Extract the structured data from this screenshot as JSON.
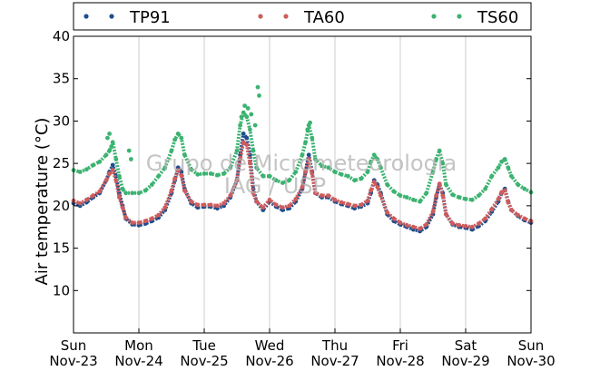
{
  "chart_data": {
    "type": "scatter",
    "ylabel": "Air temperature (°C)",
    "xlabel": "",
    "ylim": [
      5,
      40
    ],
    "yticks": [
      10,
      15,
      20,
      25,
      30,
      35,
      40
    ],
    "xlim": [
      0,
      7
    ],
    "grid": "vertical only",
    "legend_placement": "top, above plot",
    "x_unit": "days from Sun Nov-23 00:00",
    "xticks": [
      {
        "x": 0,
        "day": "Sun",
        "date": "Nov-23"
      },
      {
        "x": 1,
        "day": "Mon",
        "date": "Nov-24"
      },
      {
        "x": 2,
        "day": "Tue",
        "date": "Nov-25"
      },
      {
        "x": 3,
        "day": "Wed",
        "date": "Nov-26"
      },
      {
        "x": 4,
        "day": "Thu",
        "date": "Nov-27"
      },
      {
        "x": 5,
        "day": "Fri",
        "date": "Nov-28"
      },
      {
        "x": 6,
        "day": "Sat",
        "date": "Nov-29"
      },
      {
        "x": 7,
        "day": "Sun",
        "date": "Nov-30"
      }
    ],
    "watermark": [
      "Grupo de Micrometeorologia",
      "IAG / USP"
    ],
    "series": [
      {
        "name": "TP91",
        "color": "#1f4e8c",
        "x": [
          0.0,
          0.1,
          0.2,
          0.3,
          0.4,
          0.5,
          0.55,
          0.6,
          0.65,
          0.7,
          0.75,
          0.8,
          0.9,
          1.0,
          1.1,
          1.2,
          1.3,
          1.4,
          1.5,
          1.55,
          1.6,
          1.65,
          1.7,
          1.8,
          1.9,
          2.0,
          2.1,
          2.2,
          2.3,
          2.4,
          2.5,
          2.55,
          2.6,
          2.65,
          2.7,
          2.75,
          2.8,
          2.9,
          3.0,
          3.1,
          3.2,
          3.3,
          3.4,
          3.5,
          3.55,
          3.6,
          3.65,
          3.7,
          3.8,
          3.9,
          4.0,
          4.1,
          4.2,
          4.3,
          4.4,
          4.5,
          4.55,
          4.6,
          4.65,
          4.7,
          4.8,
          4.9,
          5.0,
          5.1,
          5.2,
          5.3,
          5.4,
          5.5,
          5.55,
          5.6,
          5.65,
          5.7,
          5.8,
          5.9,
          6.0,
          6.1,
          6.2,
          6.3,
          6.4,
          6.5,
          6.55,
          6.6,
          6.65,
          6.7,
          6.8,
          6.9,
          7.0
        ],
        "y": [
          20.3,
          20.0,
          20.4,
          21.0,
          21.5,
          23.0,
          24.0,
          24.8,
          23.5,
          21.5,
          20.0,
          18.5,
          17.8,
          17.7,
          17.9,
          18.2,
          18.6,
          19.5,
          21.5,
          23.0,
          24.5,
          24.0,
          22.0,
          20.3,
          19.8,
          19.9,
          19.9,
          19.7,
          20.0,
          21.0,
          23.0,
          26.0,
          28.5,
          28.0,
          26.0,
          22.0,
          20.5,
          19.5,
          20.5,
          19.9,
          19.5,
          19.7,
          20.5,
          22.0,
          24.0,
          26.0,
          24.0,
          21.5,
          21.0,
          21.0,
          20.5,
          20.2,
          20.0,
          19.7,
          19.9,
          20.3,
          21.5,
          23.0,
          22.5,
          21.5,
          19.0,
          18.2,
          17.8,
          17.5,
          17.2,
          17.0,
          17.5,
          19.0,
          21.0,
          22.5,
          21.5,
          19.0,
          17.8,
          17.5,
          17.4,
          17.2,
          17.6,
          18.2,
          19.3,
          20.5,
          21.5,
          22.0,
          20.5,
          19.5,
          18.8,
          18.3,
          18.0
        ]
      },
      {
        "name": "TA60",
        "color": "#cd5c5c",
        "x": [
          0.0,
          0.1,
          0.2,
          0.3,
          0.4,
          0.5,
          0.55,
          0.6,
          0.65,
          0.7,
          0.75,
          0.8,
          0.9,
          1.0,
          1.1,
          1.2,
          1.3,
          1.4,
          1.5,
          1.55,
          1.6,
          1.65,
          1.7,
          1.8,
          1.9,
          2.0,
          2.1,
          2.2,
          2.3,
          2.4,
          2.5,
          2.55,
          2.6,
          2.65,
          2.7,
          2.75,
          2.8,
          2.9,
          3.0,
          3.1,
          3.2,
          3.3,
          3.4,
          3.5,
          3.55,
          3.6,
          3.65,
          3.7,
          3.8,
          3.9,
          4.0,
          4.1,
          4.2,
          4.3,
          4.4,
          4.5,
          4.55,
          4.6,
          4.65,
          4.7,
          4.8,
          4.9,
          5.0,
          5.1,
          5.2,
          5.3,
          5.4,
          5.5,
          5.55,
          5.6,
          5.65,
          5.7,
          5.8,
          5.9,
          6.0,
          6.1,
          6.2,
          6.3,
          6.4,
          6.5,
          6.55,
          6.6,
          6.65,
          6.7,
          6.8,
          6.9,
          7.0
        ],
        "y": [
          20.6,
          20.3,
          20.7,
          21.2,
          21.7,
          23.0,
          23.8,
          24.2,
          23.0,
          21.0,
          19.8,
          18.6,
          18.0,
          18.0,
          18.2,
          18.5,
          18.9,
          19.8,
          21.8,
          23.2,
          24.2,
          23.6,
          21.8,
          20.5,
          20.1,
          20.1,
          20.1,
          20.0,
          20.3,
          21.2,
          23.0,
          25.5,
          27.5,
          27.2,
          25.0,
          21.5,
          20.5,
          19.8,
          20.7,
          20.1,
          19.8,
          20.0,
          20.8,
          22.2,
          24.0,
          25.5,
          23.8,
          21.5,
          21.2,
          21.2,
          20.7,
          20.4,
          20.2,
          20.0,
          20.1,
          20.6,
          21.8,
          22.8,
          22.2,
          21.2,
          19.2,
          18.5,
          18.0,
          17.7,
          17.5,
          17.3,
          17.8,
          19.3,
          21.2,
          22.6,
          21.2,
          19.0,
          17.9,
          17.7,
          17.6,
          17.5,
          17.9,
          18.5,
          19.6,
          20.8,
          21.6,
          21.8,
          20.4,
          19.5,
          18.9,
          18.5,
          18.2
        ]
      },
      {
        "name": "TS60",
        "color": "#3cb371",
        "x": [
          0.0,
          0.1,
          0.2,
          0.3,
          0.4,
          0.5,
          0.55,
          0.6,
          0.65,
          0.7,
          0.75,
          0.8,
          0.9,
          1.0,
          1.1,
          1.2,
          1.3,
          1.4,
          1.5,
          1.55,
          1.6,
          1.65,
          1.7,
          1.8,
          1.9,
          2.0,
          2.1,
          2.2,
          2.3,
          2.4,
          2.5,
          2.55,
          2.6,
          2.65,
          2.7,
          2.75,
          2.8,
          2.9,
          3.0,
          3.1,
          3.2,
          3.3,
          3.4,
          3.5,
          3.55,
          3.6,
          3.65,
          3.7,
          3.8,
          3.9,
          4.0,
          4.1,
          4.2,
          4.3,
          4.4,
          4.5,
          4.55,
          4.6,
          4.65,
          4.7,
          4.8,
          4.9,
          5.0,
          5.1,
          5.2,
          5.3,
          5.4,
          5.5,
          5.55,
          5.6,
          5.65,
          5.7,
          5.8,
          5.9,
          6.0,
          6.1,
          6.2,
          6.3,
          6.4,
          6.5,
          6.55,
          6.6,
          6.65,
          6.7,
          6.8,
          6.9,
          7.0,
          2.57,
          2.62,
          2.67,
          2.72,
          2.78,
          2.82,
          2.84,
          0.55,
          0.52,
          0.58,
          0.85,
          0.88,
          3.62,
          3.58
        ],
        "y": [
          24.2,
          24.0,
          24.3,
          24.8,
          25.2,
          26.0,
          26.5,
          27.5,
          25.5,
          23.5,
          22.0,
          21.5,
          21.5,
          21.5,
          21.8,
          22.5,
          23.5,
          24.5,
          26.5,
          27.8,
          28.5,
          28.0,
          26.0,
          24.3,
          23.7,
          23.8,
          23.8,
          23.6,
          23.8,
          24.5,
          26.5,
          29.5,
          31.0,
          30.5,
          29.0,
          26.5,
          24.5,
          23.5,
          23.5,
          23.0,
          22.7,
          23.0,
          24.0,
          26.0,
          27.5,
          29.5,
          28.0,
          25.5,
          24.7,
          24.5,
          24.0,
          23.7,
          23.5,
          23.0,
          23.2,
          24.0,
          25.2,
          26.0,
          25.5,
          24.5,
          22.5,
          21.7,
          21.2,
          21.0,
          20.7,
          20.5,
          21.5,
          24.0,
          25.5,
          26.5,
          25.0,
          22.5,
          21.3,
          21.0,
          20.8,
          20.7,
          21.2,
          22.0,
          23.5,
          24.5,
          25.2,
          25.5,
          24.5,
          23.5,
          22.5,
          22.0,
          21.6,
          30.5,
          31.8,
          31.5,
          30.8,
          29.5,
          34.0,
          33.0,
          28.5,
          28.0,
          27.0,
          26.5,
          25.5,
          29.8,
          29.0
        ]
      }
    ]
  }
}
